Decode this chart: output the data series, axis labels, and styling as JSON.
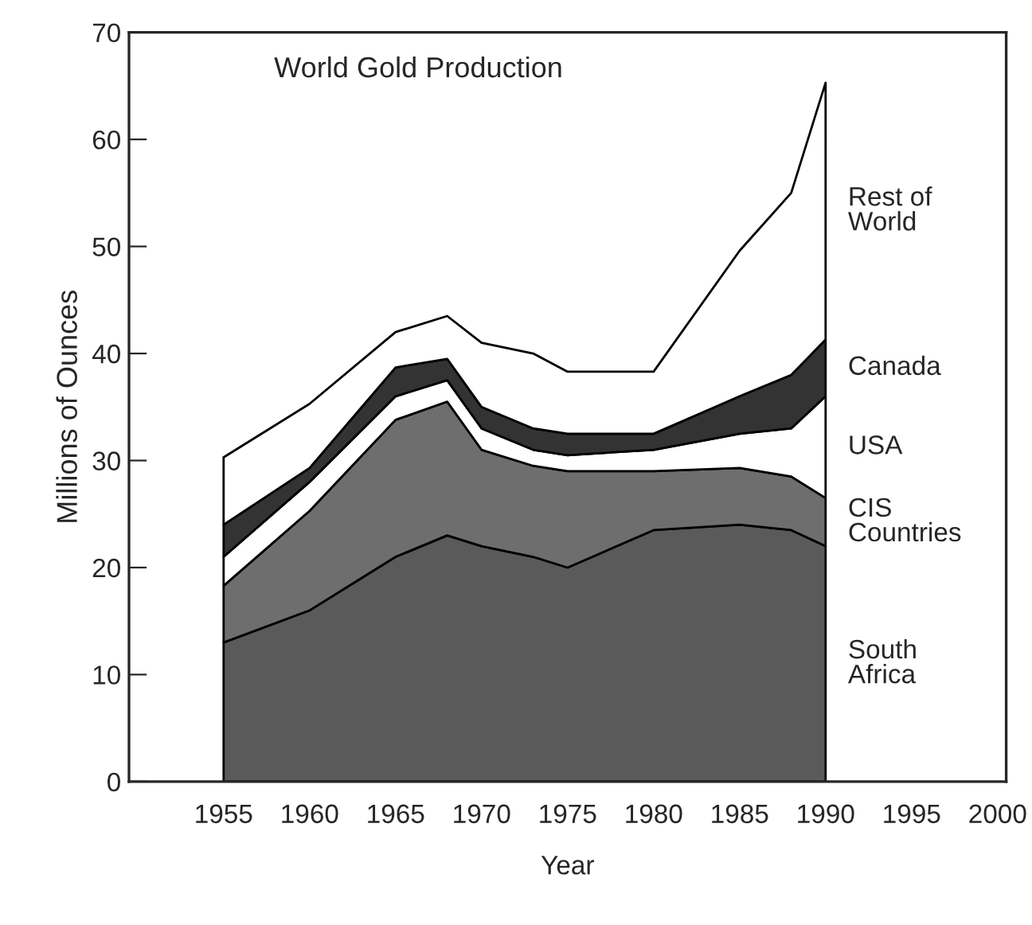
{
  "chart_data": {
    "type": "area",
    "stacked": true,
    "title": "World Gold Production",
    "xlabel": "Year",
    "ylabel": "Millions of Ounces",
    "x": [
      1955,
      1960,
      1965,
      1968,
      1970,
      1973,
      1975,
      1980,
      1985,
      1988,
      1990
    ],
    "series": [
      {
        "name": "South Africa",
        "color": "#5a5a5a",
        "values": [
          13,
          16,
          21,
          23,
          22,
          21,
          20,
          23.5,
          24,
          23.5,
          22
        ]
      },
      {
        "name": "CIS Countries",
        "color": "#6e6e6e",
        "values": [
          5.3,
          9.3,
          12.8,
          12.5,
          9,
          8.5,
          9,
          5.5,
          5.3,
          5,
          4.5
        ]
      },
      {
        "name": "USA",
        "color": "#ffffff",
        "values": [
          2.7,
          2.7,
          2.2,
          2,
          2,
          1.5,
          1.5,
          2,
          3.2,
          4.5,
          9.5
        ]
      },
      {
        "name": "Canada",
        "color": "#333333",
        "values": [
          3,
          1.3,
          2.7,
          2,
          2,
          2,
          2,
          1.5,
          3.5,
          5,
          5.3
        ]
      },
      {
        "name": "Rest of World",
        "color": "#ffffff",
        "values": [
          6.3,
          6,
          3.3,
          4,
          6,
          7,
          5.8,
          5.8,
          13.6,
          17,
          24
        ]
      }
    ],
    "xlim": [
      1949.5,
      2000.5
    ],
    "ylim": [
      0,
      70
    ],
    "xticks": [
      1955,
      1960,
      1965,
      1970,
      1975,
      1980,
      1985,
      1990,
      1995,
      2000
    ],
    "yticks": [
      0,
      10,
      20,
      30,
      40,
      50,
      60,
      70
    ],
    "grid": false,
    "legend": false
  }
}
